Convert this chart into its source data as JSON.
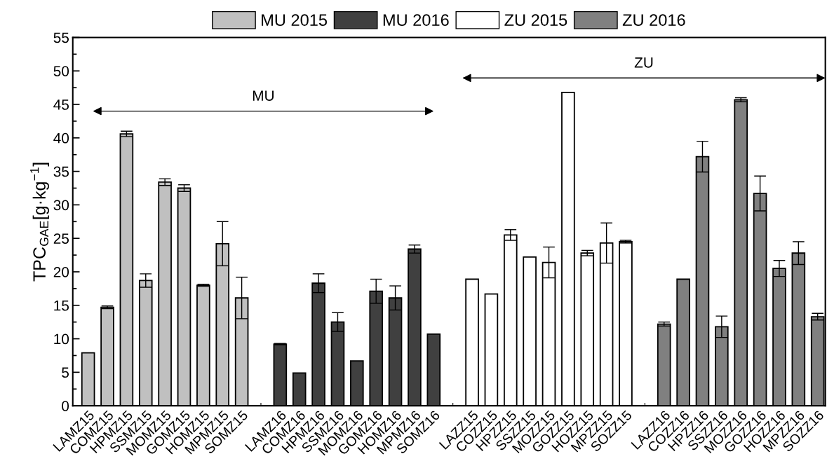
{
  "chart_data": {
    "type": "bar",
    "ylabel": "TPC$_{GAE}$[g·kg$^{−1}$]",
    "categories": [
      "LAMZ15",
      "COMZ15",
      "HPMZ15",
      "SSMZ15",
      "MOMZ15",
      "GOMZ15",
      "HOMZ15",
      "MPMZ15",
      "SOMZ15",
      null,
      "LAMZ16",
      "COMZ16",
      "HPMZ16",
      "SSMZ16",
      "MOMZ16",
      "GOMZ16",
      "HOMZ16",
      "MPMZ16",
      "SOMZ16",
      null,
      "LAZZ15",
      "COZZ15",
      "HPZZ15",
      "SSZZ15",
      "MOZZ15",
      "GOZZ15",
      "HOZZ15",
      "MPZZ15",
      "SOZZ15",
      null,
      "LAZZ16",
      "COZZ16",
      "HPZZ16",
      "SSZZ16",
      "MOZZ16",
      "GOZZ16",
      "HOZZ16",
      "MPZZ16",
      "SOZZ16"
    ],
    "series": [
      {
        "name": "MU 2015",
        "color": "#c0c0c0",
        "values": [
          7.9,
          14.7,
          40.6,
          18.7,
          33.4,
          32.5,
          18.0,
          24.2,
          16.1,
          null,
          null,
          null,
          null,
          null,
          null,
          null,
          null,
          null,
          null,
          null,
          null,
          null,
          null,
          null,
          null,
          null,
          null,
          null,
          null,
          null,
          null,
          null,
          null,
          null,
          null,
          null,
          null,
          null,
          null
        ],
        "errors": [
          null,
          0.2,
          0.4,
          1.0,
          0.5,
          0.5,
          0.15,
          3.3,
          3.1,
          null,
          null,
          null,
          null,
          null,
          null,
          null,
          null,
          null,
          null,
          null,
          null,
          null,
          null,
          null,
          null,
          null,
          null,
          null,
          null,
          null,
          null,
          null,
          null,
          null,
          null,
          null,
          null,
          null,
          null
        ]
      },
      {
        "name": "MU 2016",
        "color": "#404040",
        "values": [
          null,
          null,
          null,
          null,
          null,
          null,
          null,
          null,
          null,
          null,
          9.2,
          4.9,
          18.3,
          12.5,
          6.7,
          17.1,
          16.1,
          23.4,
          10.7,
          null,
          null,
          null,
          null,
          null,
          null,
          null,
          null,
          null,
          null,
          null,
          null,
          null,
          null,
          null,
          null,
          null,
          null,
          null,
          null
        ],
        "errors": [
          null,
          null,
          null,
          null,
          null,
          null,
          null,
          null,
          null,
          null,
          0.1,
          null,
          1.4,
          1.4,
          null,
          1.8,
          1.8,
          0.6,
          null,
          null,
          null,
          null,
          null,
          null,
          null,
          null,
          null,
          null,
          null,
          null,
          null,
          null,
          null,
          null,
          null,
          null,
          null,
          null,
          null
        ]
      },
      {
        "name": "ZU 2015",
        "color": "#ffffff",
        "values": [
          null,
          null,
          null,
          null,
          null,
          null,
          null,
          null,
          null,
          null,
          null,
          null,
          null,
          null,
          null,
          null,
          null,
          null,
          null,
          null,
          18.9,
          16.7,
          25.5,
          22.2,
          21.4,
          46.8,
          22.8,
          24.3,
          24.5,
          null,
          null,
          null,
          null,
          null,
          null,
          null,
          null,
          null,
          null
        ],
        "errors": [
          null,
          null,
          null,
          null,
          null,
          null,
          null,
          null,
          null,
          null,
          null,
          null,
          null,
          null,
          null,
          null,
          null,
          null,
          null,
          null,
          null,
          null,
          0.8,
          null,
          2.3,
          null,
          0.4,
          3.0,
          0.2,
          null,
          null,
          null,
          null,
          null,
          null,
          null,
          null,
          null,
          null
        ]
      },
      {
        "name": "ZU 2016",
        "color": "#808080",
        "values": [
          null,
          null,
          null,
          null,
          null,
          null,
          null,
          null,
          null,
          null,
          null,
          null,
          null,
          null,
          null,
          null,
          null,
          null,
          null,
          null,
          null,
          null,
          null,
          null,
          null,
          null,
          null,
          null,
          null,
          null,
          12.2,
          18.9,
          37.2,
          11.8,
          45.7,
          31.7,
          20.5,
          22.8,
          13.3
        ],
        "errors": [
          null,
          null,
          null,
          null,
          null,
          null,
          null,
          null,
          null,
          null,
          null,
          null,
          null,
          null,
          null,
          null,
          null,
          null,
          null,
          null,
          null,
          null,
          null,
          null,
          null,
          null,
          null,
          null,
          null,
          null,
          0.3,
          null,
          2.3,
          1.6,
          0.3,
          2.6,
          1.2,
          1.7,
          0.5
        ]
      }
    ],
    "annotations": [
      "MU",
      "ZU"
    ],
    "ylim": [
      0,
      55
    ],
    "yticks": [
      0,
      5,
      10,
      15,
      20,
      25,
      30,
      35,
      40,
      45,
      50,
      55
    ],
    "grid": false,
    "legend": "top"
  }
}
